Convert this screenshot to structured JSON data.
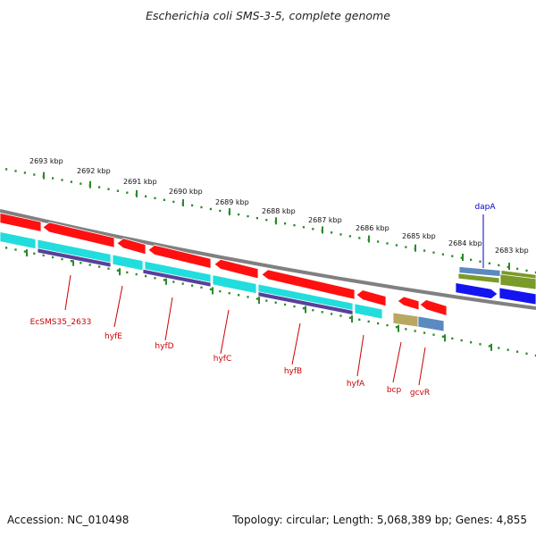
{
  "title": "Escherichia coli SMS-3-5, complete genome",
  "accession": "Accession: NC_010498",
  "topology": "Topology: circular; Length: 5,068,389 bp; Genes: 4,855",
  "colors": {
    "forward_gene": "#ff1010",
    "cds_cyan": "#22dddd",
    "cds_purple": "#5a3f9a",
    "forward_strand_gene": "#1414f0",
    "olive": "#7a9a2a",
    "steel": "#5a8ac0",
    "khaki": "#b8a860",
    "ruler_tick": "#2a8a2a",
    "backbone": "#808080",
    "reverse_label": "#cc0000",
    "forward_label": "#0000cc"
  },
  "kbp_labels": [
    "2693 kbp",
    "2692 kbp",
    "2691 kbp",
    "2690 kbp",
    "2689 kbp",
    "2688 kbp",
    "2687 kbp",
    "2686 kbp",
    "2685 kbp",
    "2684 kbp",
    "2683 kbp"
  ],
  "genes_reverse": [
    {
      "name": "EcSMS35_2633",
      "strand": "reverse"
    },
    {
      "name": "hyfE",
      "strand": "reverse"
    },
    {
      "name": "hyfD",
      "strand": "reverse"
    },
    {
      "name": "hyfC",
      "strand": "reverse"
    },
    {
      "name": "hyfB",
      "strand": "reverse"
    },
    {
      "name": "hyfA",
      "strand": "reverse"
    },
    {
      "name": "bcp",
      "strand": "reverse"
    },
    {
      "name": "gcvR",
      "strand": "reverse"
    }
  ],
  "genes_forward": [
    {
      "name": "dapA",
      "strand": "forward"
    }
  ]
}
